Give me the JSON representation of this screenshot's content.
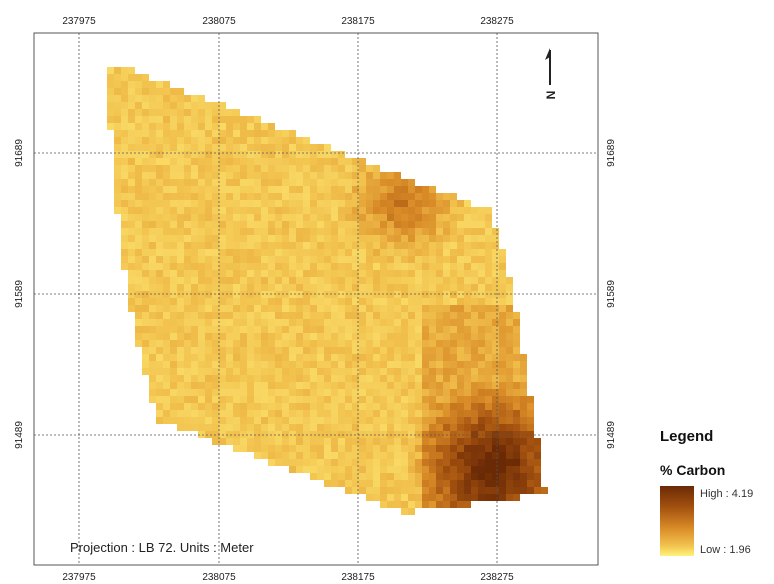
{
  "map": {
    "x_ticks_top": [
      "237975",
      "238075",
      "238175",
      "238275"
    ],
    "x_ticks_bottom": [
      "237975",
      "238075",
      "238175",
      "238275"
    ],
    "y_ticks": [
      "91689",
      "91589",
      "91489"
    ],
    "projection_note": "Projection : LB 72. Units : Meter",
    "north_label": "N",
    "raster_value_range": [
      1.96,
      4.19
    ]
  },
  "legend": {
    "title": "Legend",
    "subtitle": "% Carbon",
    "high_label": "High : 4.19",
    "low_label": "Low : 1.96",
    "colors": {
      "high": "#6b2a06",
      "mid": "#d98b27",
      "low": "#fff27a"
    }
  }
}
